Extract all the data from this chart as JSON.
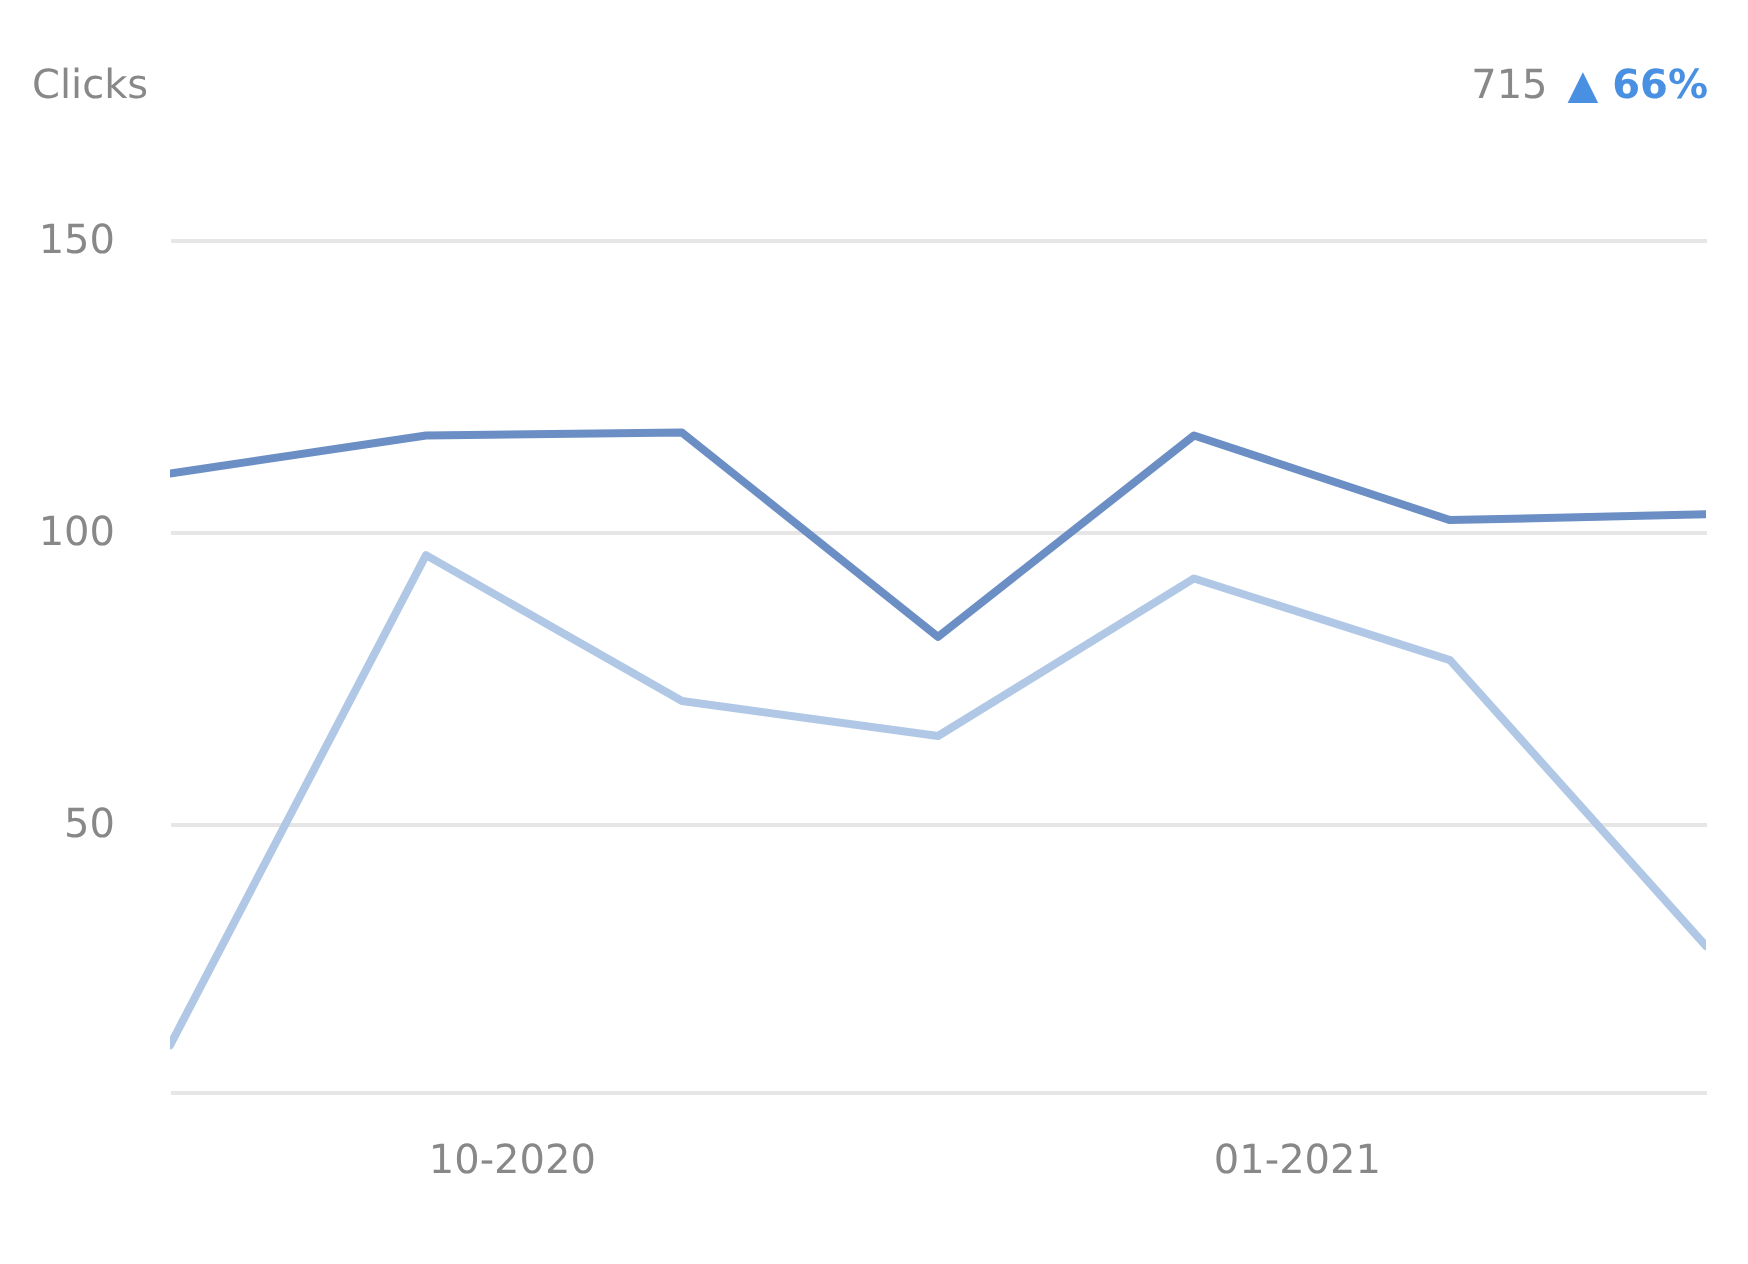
{
  "chart_data": {
    "type": "line",
    "title": "Clicks",
    "annotations": [
      "715",
      "▲ 66%"
    ],
    "x": [
      "2020-08-22",
      "2020-09-21",
      "2020-10-21",
      "2020-11-20",
      "2020-12-20",
      "2021-01-19",
      "2021-02-18"
    ],
    "series": [
      {
        "color": "#6b8fc4",
        "values": [
          110,
          116.5,
          117,
          82,
          116.5,
          102,
          103
        ]
      },
      {
        "color": "#b0c8e6",
        "values": [
          12,
          96,
          71,
          65,
          92,
          78,
          29
        ]
      }
    ],
    "xlim": [
      "2020-08-22",
      "2021-02-18"
    ],
    "xticks": [
      {
        "value": "2020-10-01",
        "label": "10-2020"
      },
      {
        "value": "2021-01-01",
        "label": "01-2021"
      }
    ],
    "ylim": [
      4,
      150
    ],
    "yticks": [
      50,
      100,
      150
    ],
    "grid": "y",
    "legend": false,
    "marker": "none",
    "line_style": "solid"
  }
}
